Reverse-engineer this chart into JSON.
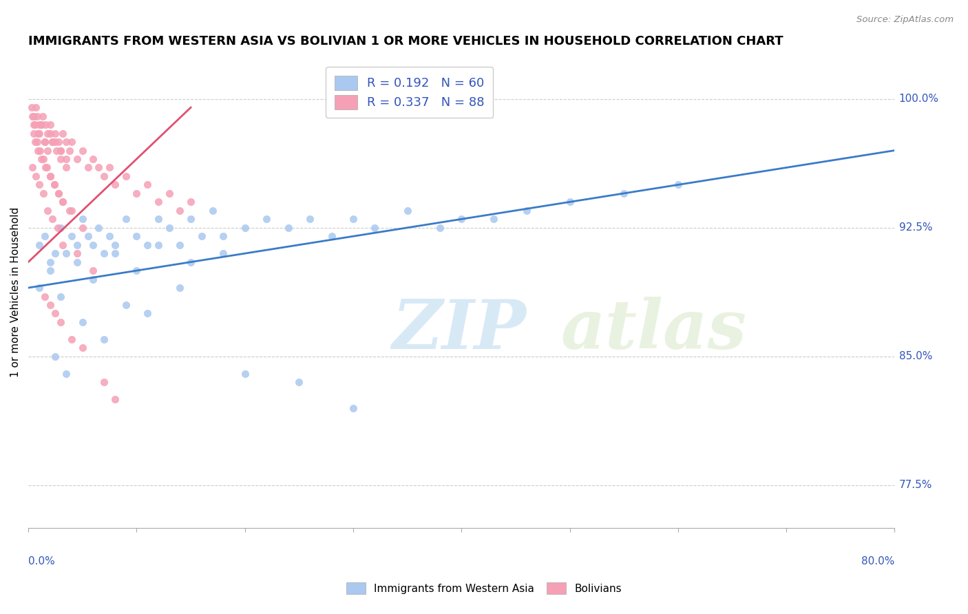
{
  "title": "IMMIGRANTS FROM WESTERN ASIA VS BOLIVIAN 1 OR MORE VEHICLES IN HOUSEHOLD CORRELATION CHART",
  "source": "Source: ZipAtlas.com",
  "xlim": [
    0.0,
    80.0
  ],
  "ylim": [
    75.0,
    102.5
  ],
  "blue_R": 0.192,
  "blue_N": 60,
  "pink_R": 0.337,
  "pink_N": 88,
  "blue_color": "#aac8f0",
  "pink_color": "#f5a0b5",
  "blue_line_color": "#3a7bc8",
  "pink_line_color": "#e05070",
  "legend_label_blue": "Immigrants from Western Asia",
  "legend_label_pink": "Bolivians",
  "watermark_zip": "ZIP",
  "watermark_atlas": "atlas",
  "title_fontsize": 13,
  "y_tick_labels": [
    "77.5%",
    "85.0%",
    "92.5%",
    "100.0%"
  ],
  "y_tick_values": [
    77.5,
    85.0,
    92.5,
    100.0
  ],
  "blue_scatter_x": [
    1.0,
    1.5,
    2.0,
    2.5,
    3.0,
    3.5,
    4.0,
    4.5,
    5.0,
    5.5,
    6.0,
    6.5,
    7.0,
    7.5,
    8.0,
    9.0,
    10.0,
    11.0,
    12.0,
    13.0,
    14.0,
    15.0,
    16.0,
    17.0,
    18.0,
    20.0,
    22.0,
    24.0,
    26.0,
    28.0,
    30.0,
    32.0,
    35.0,
    38.0,
    40.0,
    43.0,
    46.0,
    50.0,
    55.0,
    60.0,
    1.0,
    2.0,
    3.0,
    4.5,
    6.0,
    8.0,
    10.0,
    12.0,
    15.0,
    18.0,
    2.5,
    3.5,
    5.0,
    7.0,
    9.0,
    11.0,
    14.0,
    20.0,
    25.0,
    30.0
  ],
  "blue_scatter_y": [
    91.5,
    92.0,
    90.5,
    91.0,
    92.5,
    91.0,
    92.0,
    91.5,
    93.0,
    92.0,
    91.5,
    92.5,
    91.0,
    92.0,
    91.5,
    93.0,
    92.0,
    91.5,
    93.0,
    92.5,
    91.5,
    93.0,
    92.0,
    93.5,
    92.0,
    92.5,
    93.0,
    92.5,
    93.0,
    92.0,
    93.0,
    92.5,
    93.5,
    92.5,
    93.0,
    93.0,
    93.5,
    94.0,
    94.5,
    95.0,
    89.0,
    90.0,
    88.5,
    90.5,
    89.5,
    91.0,
    90.0,
    91.5,
    90.5,
    91.0,
    85.0,
    84.0,
    87.0,
    86.0,
    88.0,
    87.5,
    89.0,
    84.0,
    83.5,
    82.0
  ],
  "pink_scatter_x": [
    0.5,
    0.8,
    1.0,
    1.2,
    1.5,
    1.8,
    2.0,
    2.2,
    2.5,
    2.8,
    3.0,
    3.2,
    3.5,
    3.8,
    4.0,
    4.5,
    5.0,
    5.5,
    6.0,
    6.5,
    7.0,
    7.5,
    8.0,
    9.0,
    10.0,
    11.0,
    12.0,
    13.0,
    14.0,
    15.0,
    0.3,
    0.5,
    0.7,
    1.0,
    1.3,
    1.6,
    2.0,
    2.5,
    3.0,
    3.5,
    0.4,
    0.6,
    0.9,
    1.2,
    1.5,
    1.8,
    2.2,
    2.6,
    3.0,
    3.5,
    0.5,
    0.8,
    1.1,
    1.4,
    1.7,
    2.0,
    2.4,
    2.8,
    3.2,
    3.8,
    0.6,
    0.9,
    1.2,
    1.6,
    2.0,
    2.4,
    2.8,
    3.2,
    4.0,
    5.0,
    0.4,
    0.7,
    1.0,
    1.4,
    1.8,
    2.2,
    2.7,
    3.2,
    4.5,
    6.0,
    1.5,
    2.0,
    2.5,
    3.0,
    4.0,
    5.0,
    7.0,
    8.0
  ],
  "pink_scatter_y": [
    98.5,
    99.0,
    98.0,
    98.5,
    97.5,
    98.0,
    98.5,
    97.5,
    98.0,
    97.5,
    97.0,
    98.0,
    97.5,
    97.0,
    97.5,
    96.5,
    97.0,
    96.0,
    96.5,
    96.0,
    95.5,
    96.0,
    95.0,
    95.5,
    94.5,
    95.0,
    94.0,
    94.5,
    93.5,
    94.0,
    99.5,
    99.0,
    99.5,
    98.5,
    99.0,
    98.5,
    98.0,
    97.5,
    97.0,
    96.5,
    99.0,
    98.5,
    98.0,
    98.5,
    97.5,
    97.0,
    97.5,
    97.0,
    96.5,
    96.0,
    98.0,
    97.5,
    97.0,
    96.5,
    96.0,
    95.5,
    95.0,
    94.5,
    94.0,
    93.5,
    97.5,
    97.0,
    96.5,
    96.0,
    95.5,
    95.0,
    94.5,
    94.0,
    93.5,
    92.5,
    96.0,
    95.5,
    95.0,
    94.5,
    93.5,
    93.0,
    92.5,
    91.5,
    91.0,
    90.0,
    88.5,
    88.0,
    87.5,
    87.0,
    86.0,
    85.5,
    83.5,
    82.5
  ]
}
